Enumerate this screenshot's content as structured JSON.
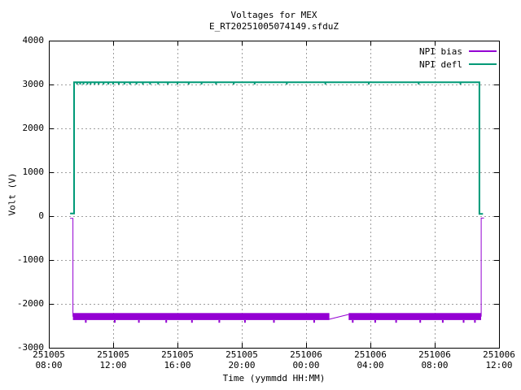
{
  "chart_data": {
    "type": "line",
    "title": "Voltages for MEX",
    "subtitle": "E_RT20251005074149.sfduZ",
    "xlabel": "Time (yymmdd HH:MM)",
    "ylabel": "Volt (V)",
    "ylim": [
      -3000,
      4000
    ],
    "yticks": [
      4000,
      3000,
      2000,
      1000,
      0,
      -1000,
      -2000,
      -3000
    ],
    "x_hours_range": [
      0,
      28
    ],
    "xticks": [
      {
        "date": "251005",
        "time": "08:00",
        "hour": 0
      },
      {
        "date": "251005",
        "time": "12:00",
        "hour": 4
      },
      {
        "date": "251005",
        "time": "16:00",
        "hour": 8
      },
      {
        "date": "251005",
        "time": "20:00",
        "hour": 12
      },
      {
        "date": "251006",
        "time": "00:00",
        "hour": 16
      },
      {
        "date": "251006",
        "time": "04:00",
        "hour": 20
      },
      {
        "date": "251006",
        "time": "08:00",
        "hour": 24
      },
      {
        "date": "251006",
        "time": "12:00",
        "hour": 28
      }
    ],
    "grid": true,
    "colors": {
      "grid": "#9e9e9e",
      "axis": "#000000",
      "background": "#ffffff"
    },
    "legend": {
      "position": "top-right-inside",
      "entries": [
        {
          "label": "NPI bias",
          "color": "#9400d3"
        },
        {
          "label": "NPI defl",
          "color": "#009977"
        }
      ]
    },
    "series": [
      {
        "name": "NPI bias",
        "color": "#9400d3",
        "description": "~0 V until ~251005 09:28, steps down to a noisy band around -2290 V until ~251006 10:50, then returns to ~0 V; thin slowly-rising segment between ~251006 01:30 and 02:40",
        "segments": [
          {
            "type": "line",
            "width": 1,
            "points": [
              [
                1.32,
                -50
              ],
              [
                1.5,
                -50
              ],
              [
                1.5,
                -2290
              ]
            ]
          },
          {
            "type": "band",
            "x_from": 1.5,
            "x_to": 17.45,
            "y_top": -2210,
            "y_bottom": -2370
          },
          {
            "type": "line",
            "width": 1,
            "points": [
              [
                17.45,
                -2350
              ],
              [
                18.65,
                -2240
              ]
            ]
          },
          {
            "type": "band",
            "x_from": 18.65,
            "x_to": 26.89,
            "y_top": -2210,
            "y_bottom": -2370
          },
          {
            "type": "line",
            "width": 1,
            "points": [
              [
                26.89,
                -2290
              ],
              [
                26.89,
                -45
              ],
              [
                27.07,
                -45
              ]
            ]
          },
          {
            "type": "spikes",
            "width": 2,
            "level": -2370,
            "to": -2430,
            "hours": [
              2.3,
              4.1,
              5.6,
              7.3,
              8.9,
              10.6,
              12.2,
              14.0,
              16.5,
              18.9,
              20.3,
              21.6,
              23.1,
              24.5,
              25.8,
              26.5
            ]
          }
        ]
      },
      {
        "name": "NPI defl",
        "color": "#009977",
        "description": "~0 V until ~251005 09:34, steps up to ~3050 V with small downward noise ticks, drops back to ~0 V at ~251006 10:47",
        "segments": [
          {
            "type": "line",
            "width": 2,
            "points": [
              [
                1.32,
                60
              ],
              [
                1.57,
                60
              ],
              [
                1.57,
                3050
              ],
              [
                26.78,
                3050
              ],
              [
                26.78,
                50
              ],
              [
                27.0,
                50
              ]
            ]
          },
          {
            "type": "spikes",
            "width": 2,
            "level": 3050,
            "to": 3000,
            "hours": [
              1.75,
              1.95,
              2.15,
              2.4,
              2.6,
              2.85,
              3.1,
              3.4,
              3.7,
              4.0,
              4.35,
              4.7,
              5.05,
              5.45,
              5.85,
              6.3,
              6.8,
              7.4,
              8.0,
              8.7,
              9.5,
              10.4,
              11.5,
              12.8,
              14.8,
              17.2,
              19.9,
              23.0,
              25.6
            ]
          }
        ]
      }
    ]
  }
}
